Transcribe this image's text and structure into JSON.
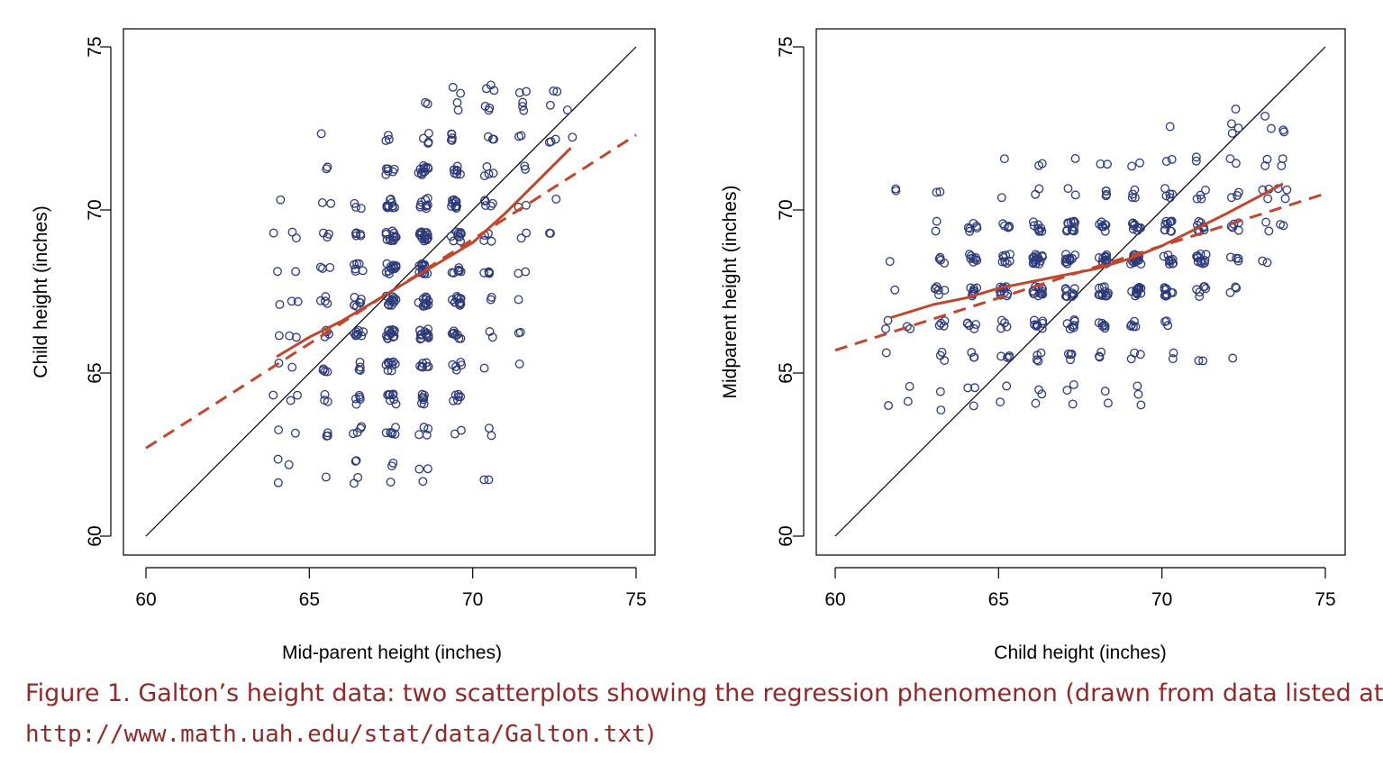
{
  "colors": {
    "points": "#2e3a7a",
    "fit": "#c0472f",
    "identity": "#000000",
    "caption": "#8f2a2a"
  },
  "caption": {
    "line1": "Figure 1. Galton’s height data: two scatterplots showing the regression phenomenon (drawn from data listed at",
    "url": "http://www.math.uah.edu/stat/data/Galton.txt",
    "close": ")"
  },
  "chart_data": [
    {
      "type": "scatter",
      "xlabel": "Mid-parent height (inches)",
      "ylabel": "Child height (inches)",
      "xlim": [
        60,
        75
      ],
      "ylim": [
        60,
        75
      ],
      "xticks": [
        "60",
        "65",
        "70",
        "75"
      ],
      "yticks": [
        "60",
        "65",
        "70",
        "75"
      ],
      "points": {
        "x_levels": [
          64.0,
          64.5,
          65.5,
          66.5,
          67.5,
          68.5,
          69.5,
          70.5,
          71.5,
          72.5,
          73.0
        ],
        "y_levels": [
          61.7,
          62.2,
          63.2,
          64.2,
          65.2,
          66.2,
          67.2,
          68.2,
          69.2,
          70.2,
          71.2,
          72.2,
          73.2,
          73.7
        ],
        "counts": [
          [
            1,
            1,
            1,
            1,
            1,
            1,
            1,
            1,
            1,
            1,
            0,
            0,
            0,
            0
          ],
          [
            0,
            1,
            1,
            2,
            1,
            2,
            2,
            1,
            2,
            0,
            0,
            0,
            0,
            0
          ],
          [
            1,
            0,
            3,
            3,
            4,
            4,
            4,
            3,
            3,
            2,
            2,
            1,
            0,
            0
          ],
          [
            2,
            2,
            4,
            5,
            4,
            8,
            7,
            6,
            5,
            3,
            0,
            0,
            0,
            0
          ],
          [
            1,
            2,
            6,
            8,
            10,
            14,
            12,
            12,
            14,
            10,
            6,
            3,
            0,
            0
          ],
          [
            1,
            2,
            4,
            7,
            8,
            15,
            12,
            14,
            16,
            9,
            11,
            4,
            2,
            0
          ],
          [
            0,
            0,
            2,
            6,
            5,
            8,
            12,
            7,
            10,
            10,
            8,
            5,
            2,
            2
          ],
          [
            2,
            0,
            2,
            0,
            1,
            2,
            2,
            4,
            4,
            5,
            4,
            3,
            3,
            3
          ],
          [
            0,
            0,
            0,
            0,
            1,
            2,
            1,
            2,
            2,
            2,
            2,
            2,
            3,
            2
          ],
          [
            0,
            0,
            0,
            0,
            0,
            0,
            0,
            0,
            2,
            1,
            0,
            3,
            1,
            2
          ],
          [
            0,
            0,
            0,
            0,
            0,
            0,
            0,
            0,
            0,
            0,
            0,
            1,
            1,
            0
          ]
        ]
      },
      "identity_line": [
        [
          60,
          60
        ],
        [
          75,
          75
        ]
      ],
      "smooth_fit": {
        "style": "solid",
        "x": [
          64,
          65,
          66,
          67,
          68,
          69,
          70,
          71,
          72,
          73
        ],
        "y": [
          65.5,
          66.1,
          66.6,
          67.2,
          67.8,
          68.4,
          69.0,
          69.9,
          70.9,
          71.9
        ]
      },
      "regression_line": {
        "style": "dashed",
        "x": [
          60,
          75
        ],
        "y": [
          62.7,
          72.3
        ]
      }
    },
    {
      "type": "scatter",
      "xlabel": "Child height (inches)",
      "ylabel": "Midparent height (inches)",
      "xlim": [
        60,
        75
      ],
      "ylim": [
        60,
        75
      ],
      "xticks": [
        "60",
        "65",
        "70",
        "75"
      ],
      "yticks": [
        "60",
        "65",
        "70",
        "75"
      ],
      "points": {
        "x_levels": [
          61.7,
          62.2,
          63.2,
          64.2,
          65.2,
          66.2,
          67.2,
          68.2,
          69.2,
          70.2,
          71.2,
          72.2,
          73.2,
          73.7
        ],
        "y_levels": [
          64.0,
          64.5,
          65.5,
          66.5,
          67.5,
          68.5,
          69.5,
          70.5,
          71.5,
          72.5,
          73.0
        ],
        "counts": [
          [
            1,
            0,
            1,
            2,
            1,
            1,
            0,
            2,
            0,
            0,
            0
          ],
          [
            1,
            1,
            0,
            2,
            0,
            0,
            0,
            0,
            0,
            0,
            0
          ],
          [
            1,
            1,
            3,
            4,
            6,
            4,
            2,
            2,
            0,
            0,
            0
          ],
          [
            1,
            2,
            3,
            5,
            8,
            8,
            6,
            0,
            0,
            0,
            0
          ],
          [
            1,
            1,
            4,
            4,
            10,
            8,
            5,
            1,
            1,
            0,
            0
          ],
          [
            1,
            2,
            4,
            8,
            14,
            15,
            8,
            2,
            2,
            0,
            0
          ],
          [
            1,
            2,
            4,
            7,
            12,
            12,
            12,
            2,
            1,
            0,
            0
          ],
          [
            1,
            1,
            3,
            6,
            12,
            14,
            7,
            4,
            2,
            0,
            0
          ],
          [
            1,
            2,
            3,
            5,
            14,
            16,
            10,
            4,
            2,
            0,
            0
          ],
          [
            0,
            0,
            2,
            3,
            10,
            9,
            10,
            5,
            2,
            1,
            0
          ],
          [
            0,
            0,
            2,
            0,
            6,
            11,
            8,
            4,
            2,
            0,
            0
          ],
          [
            0,
            0,
            1,
            0,
            3,
            4,
            5,
            3,
            2,
            3,
            1
          ],
          [
            0,
            0,
            0,
            0,
            0,
            2,
            2,
            3,
            2,
            1,
            1
          ],
          [
            0,
            0,
            0,
            0,
            0,
            0,
            2,
            3,
            2,
            2,
            0
          ]
        ]
      },
      "identity_line": [
        [
          60,
          60
        ],
        [
          75,
          75
        ]
      ],
      "smooth_fit": {
        "style": "solid",
        "x": [
          61.7,
          63,
          64,
          65,
          66,
          67,
          68,
          69,
          70,
          71,
          72,
          73.7
        ],
        "y": [
          66.7,
          67.1,
          67.3,
          67.6,
          67.8,
          68.0,
          68.2,
          68.5,
          68.9,
          69.4,
          69.9,
          70.8
        ]
      },
      "regression_line": {
        "style": "dashed",
        "x": [
          60,
          75
        ],
        "y": [
          65.7,
          70.5
        ]
      }
    }
  ]
}
